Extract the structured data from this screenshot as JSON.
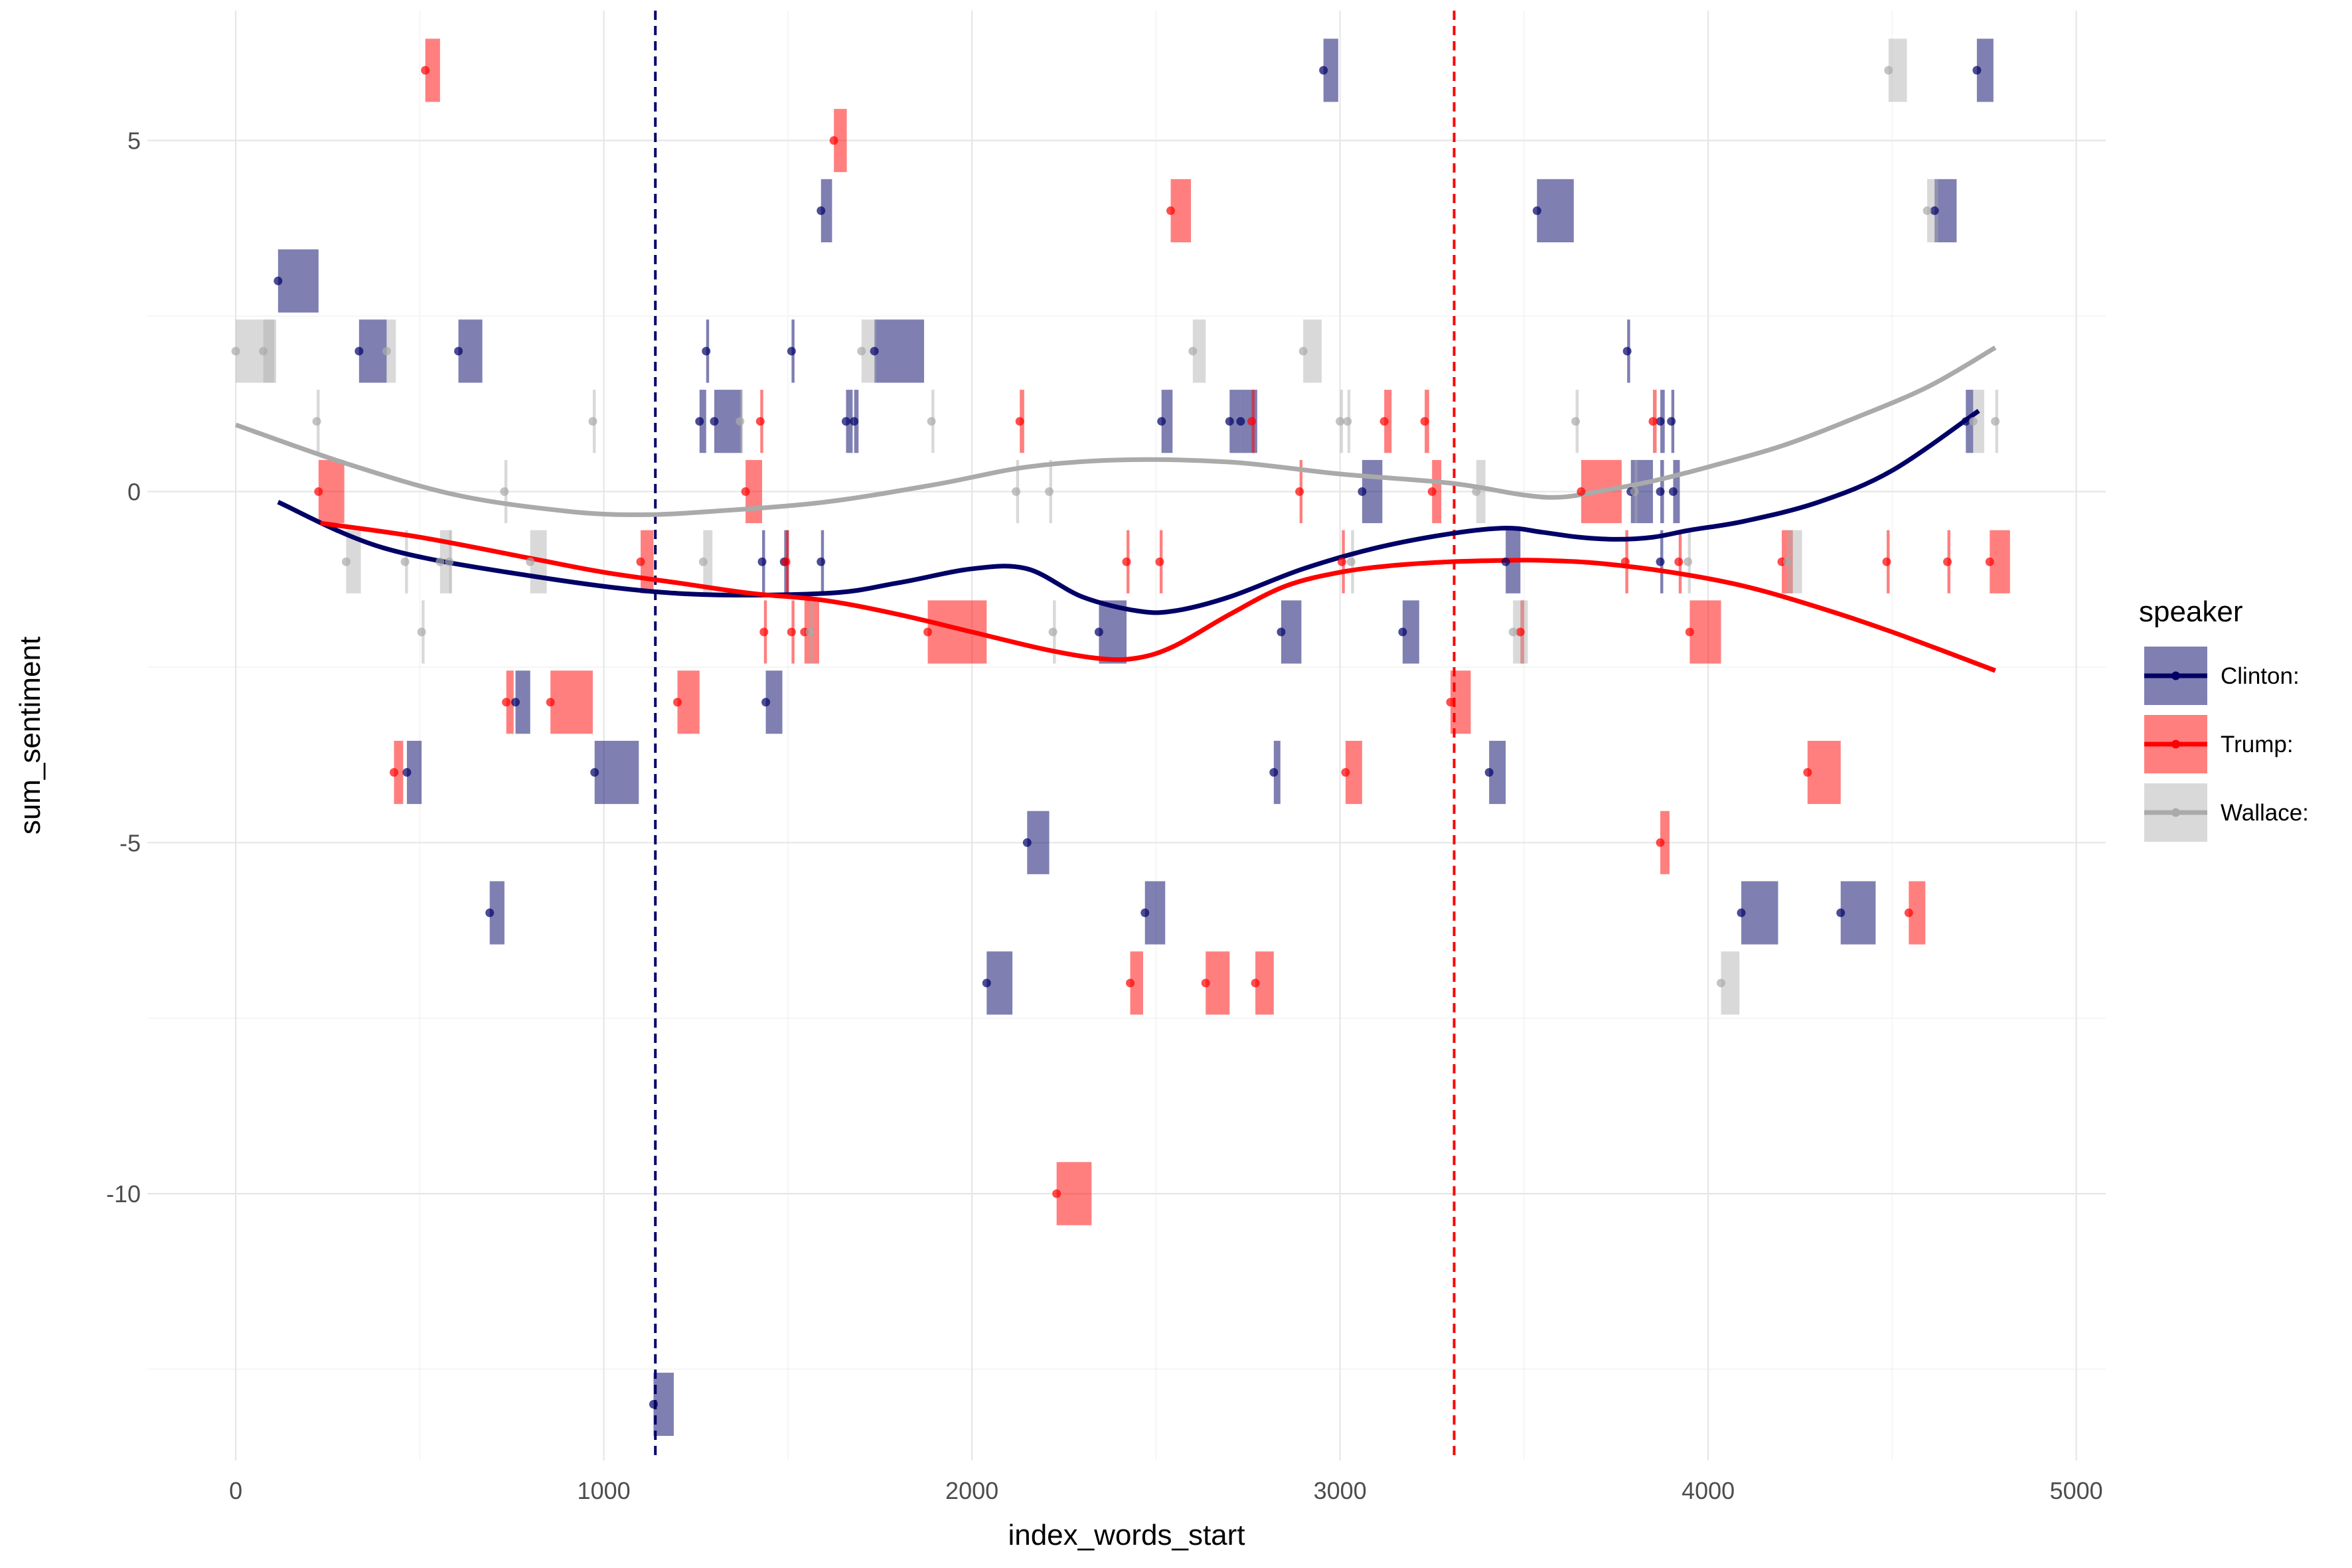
{
  "chart_data": {
    "type": "scatter",
    "xlabel": "index_words_start",
    "ylabel": "sum_sentiment",
    "xlim": [
      -240,
      5080
    ],
    "ylim": [
      -13.8,
      6.85
    ],
    "x_ticks": [
      0,
      1000,
      2000,
      3000,
      4000,
      5000
    ],
    "x_tick_labels": [
      "0",
      "1000",
      "2000",
      "3000",
      "4000",
      "5000"
    ],
    "y_ticks": [
      -10,
      -5,
      0,
      5
    ],
    "y_tick_labels": [
      "-10",
      "-5",
      "0",
      "5"
    ],
    "grid": true,
    "legend": {
      "title": "speaker",
      "position": "right",
      "entries": [
        {
          "label": "Clinton:",
          "color": "#000066"
        },
        {
          "label": "Trump:",
          "color": "#ff0000"
        },
        {
          "label": "Wallace:",
          "color": "#aaaaaa"
        }
      ]
    },
    "vlines": [
      {
        "x": 1140,
        "color": "#000066"
      },
      {
        "x": 3310,
        "color": "#ff0000"
      }
    ],
    "series": [
      {
        "name": "Clinton:",
        "color": "#000066",
        "points": [
          {
            "x": 115,
            "y": 3,
            "len": 110
          },
          {
            "x": 335,
            "y": 2,
            "len": 75
          },
          {
            "x": 605,
            "y": 2,
            "len": 65
          },
          {
            "x": 1590,
            "y": 4,
            "len": 30
          },
          {
            "x": 1735,
            "y": 2,
            "len": 135
          },
          {
            "x": 1278,
            "y": 2,
            "len": 8
          },
          {
            "x": 1510,
            "y": 2,
            "len": 8
          },
          {
            "x": 2955,
            "y": 6,
            "len": 40
          },
          {
            "x": 4730,
            "y": 6,
            "len": 45
          },
          {
            "x": 3535,
            "y": 4,
            "len": 100
          },
          {
            "x": 4615,
            "y": 4,
            "len": 60
          },
          {
            "x": 3780,
            "y": 2,
            "len": 8
          },
          {
            "x": 1260,
            "y": 1,
            "len": 18
          },
          {
            "x": 1300,
            "y": 1,
            "len": 75
          },
          {
            "x": 1658,
            "y": 1,
            "len": 18
          },
          {
            "x": 1680,
            "y": 1,
            "len": 12
          },
          {
            "x": 2515,
            "y": 1,
            "len": 30
          },
          {
            "x": 2700,
            "y": 1,
            "len": 30
          },
          {
            "x": 2730,
            "y": 1,
            "len": 45
          },
          {
            "x": 3870,
            "y": 1,
            "len": 12
          },
          {
            "x": 3900,
            "y": 1,
            "len": 8
          },
          {
            "x": 4700,
            "y": 1,
            "len": 20
          },
          {
            "x": 3060,
            "y": 0,
            "len": 55
          },
          {
            "x": 3790,
            "y": 0,
            "len": 60
          },
          {
            "x": 3870,
            "y": 0,
            "len": 10
          },
          {
            "x": 3905,
            "y": 0,
            "len": 18
          },
          {
            "x": 1430,
            "y": -1,
            "len": 8
          },
          {
            "x": 1490,
            "y": -1,
            "len": 12
          },
          {
            "x": 1590,
            "y": -1,
            "len": 8
          },
          {
            "x": 3450,
            "y": -1,
            "len": 40
          },
          {
            "x": 3870,
            "y": -1,
            "len": 8
          },
          {
            "x": 2345,
            "y": -2,
            "len": 75
          },
          {
            "x": 2840,
            "y": -2,
            "len": 55
          },
          {
            "x": 3170,
            "y": -2,
            "len": 45
          },
          {
            "x": 760,
            "y": -3,
            "len": 40
          },
          {
            "x": 1440,
            "y": -3,
            "len": 45
          },
          {
            "x": 465,
            "y": -4,
            "len": 40
          },
          {
            "x": 975,
            "y": -4,
            "len": 120
          },
          {
            "x": 2820,
            "y": -4,
            "len": 18
          },
          {
            "x": 3405,
            "y": -4,
            "len": 45
          },
          {
            "x": 2150,
            "y": -5,
            "len": 60
          },
          {
            "x": 690,
            "y": -6,
            "len": 40
          },
          {
            "x": 2470,
            "y": -6,
            "len": 55
          },
          {
            "x": 4090,
            "y": -6,
            "len": 100
          },
          {
            "x": 4360,
            "y": -6,
            "len": 95
          },
          {
            "x": 2040,
            "y": -7,
            "len": 70
          },
          {
            "x": 1135,
            "y": -13,
            "len": 55
          }
        ]
      },
      {
        "name": "Trump:",
        "color": "#ff0000",
        "points": [
          {
            "x": 515,
            "y": 6,
            "len": 40
          },
          {
            "x": 1625,
            "y": 5,
            "len": 35
          },
          {
            "x": 2540,
            "y": 4,
            "len": 55
          },
          {
            "x": 225,
            "y": 0,
            "len": 70
          },
          {
            "x": 1385,
            "y": 0,
            "len": 45
          },
          {
            "x": 2890,
            "y": 0,
            "len": 8
          },
          {
            "x": 3250,
            "y": 0,
            "len": 25
          },
          {
            "x": 3655,
            "y": 0,
            "len": 110
          },
          {
            "x": 1425,
            "y": 1,
            "len": 8
          },
          {
            "x": 2130,
            "y": 1,
            "len": 12
          },
          {
            "x": 2760,
            "y": 1,
            "len": 8
          },
          {
            "x": 3120,
            "y": 1,
            "len": 20
          },
          {
            "x": 3230,
            "y": 1,
            "len": 12
          },
          {
            "x": 3850,
            "y": 1,
            "len": 10
          },
          {
            "x": 1100,
            "y": -1,
            "len": 35
          },
          {
            "x": 1495,
            "y": -1,
            "len": 8
          },
          {
            "x": 2420,
            "y": -1,
            "len": 8
          },
          {
            "x": 2510,
            "y": -1,
            "len": 8
          },
          {
            "x": 3005,
            "y": -1,
            "len": 8
          },
          {
            "x": 3775,
            "y": -1,
            "len": 8
          },
          {
            "x": 3920,
            "y": -1,
            "len": 8
          },
          {
            "x": 4200,
            "y": -1,
            "len": 30
          },
          {
            "x": 4485,
            "y": -1,
            "len": 8
          },
          {
            "x": 4650,
            "y": -1,
            "len": 8
          },
          {
            "x": 4765,
            "y": -1,
            "len": 55
          },
          {
            "x": 1435,
            "y": -2,
            "len": 8
          },
          {
            "x": 1510,
            "y": -2,
            "len": 8
          },
          {
            "x": 1545,
            "y": -2,
            "len": 40
          },
          {
            "x": 1880,
            "y": -2,
            "len": 160
          },
          {
            "x": 3490,
            "y": -2,
            "len": 10
          },
          {
            "x": 3950,
            "y": -2,
            "len": 85
          },
          {
            "x": 735,
            "y": -3,
            "len": 20
          },
          {
            "x": 855,
            "y": -3,
            "len": 115
          },
          {
            "x": 1200,
            "y": -3,
            "len": 60
          },
          {
            "x": 3300,
            "y": -3,
            "len": 55
          },
          {
            "x": 430,
            "y": -4,
            "len": 25
          },
          {
            "x": 3015,
            "y": -4,
            "len": 45
          },
          {
            "x": 4270,
            "y": -4,
            "len": 90
          },
          {
            "x": 3870,
            "y": -5,
            "len": 25
          },
          {
            "x": 4545,
            "y": -6,
            "len": 45
          },
          {
            "x": 2430,
            "y": -7,
            "len": 35
          },
          {
            "x": 2635,
            "y": -7,
            "len": 65
          },
          {
            "x": 2770,
            "y": -7,
            "len": 50
          },
          {
            "x": 2230,
            "y": -10,
            "len": 95
          }
        ]
      },
      {
        "name": "Wallace:",
        "color": "#aaaaaa",
        "points": [
          {
            "x": 4490,
            "y": 6,
            "len": 50
          },
          {
            "x": 4595,
            "y": 4,
            "len": 30
          },
          {
            "x": 0,
            "y": 2,
            "len": 110
          },
          {
            "x": 75,
            "y": 2,
            "len": 30
          },
          {
            "x": 410,
            "y": 2,
            "len": 25
          },
          {
            "x": 1700,
            "y": 2,
            "len": 40
          },
          {
            "x": 2600,
            "y": 2,
            "len": 35
          },
          {
            "x": 2900,
            "y": 2,
            "len": 50
          },
          {
            "x": 220,
            "y": 1,
            "len": 8
          },
          {
            "x": 970,
            "y": 1,
            "len": 8
          },
          {
            "x": 1370,
            "y": 1,
            "len": 8
          },
          {
            "x": 1890,
            "y": 1,
            "len": 8
          },
          {
            "x": 3000,
            "y": 1,
            "len": 8
          },
          {
            "x": 3020,
            "y": 1,
            "len": 8
          },
          {
            "x": 3640,
            "y": 1,
            "len": 8
          },
          {
            "x": 4720,
            "y": 1,
            "len": 30
          },
          {
            "x": 4780,
            "y": 1,
            "len": 8
          },
          {
            "x": 730,
            "y": 0,
            "len": 8
          },
          {
            "x": 2120,
            "y": 0,
            "len": 8
          },
          {
            "x": 2210,
            "y": 0,
            "len": 8
          },
          {
            "x": 3370,
            "y": 0,
            "len": 25
          },
          {
            "x": 3800,
            "y": 0,
            "len": 8
          },
          {
            "x": 300,
            "y": -1,
            "len": 40
          },
          {
            "x": 460,
            "y": -1,
            "len": 8
          },
          {
            "x": 555,
            "y": -1,
            "len": 30
          },
          {
            "x": 580,
            "y": -1,
            "len": 8
          },
          {
            "x": 800,
            "y": -1,
            "len": 45
          },
          {
            "x": 1270,
            "y": -1,
            "len": 25
          },
          {
            "x": 3030,
            "y": -1,
            "len": 8
          },
          {
            "x": 3945,
            "y": -1,
            "len": 8
          },
          {
            "x": 4215,
            "y": -1,
            "len": 40
          },
          {
            "x": 505,
            "y": -2,
            "len": 8
          },
          {
            "x": 1560,
            "y": -2,
            "len": 10
          },
          {
            "x": 2220,
            "y": -2,
            "len": 8
          },
          {
            "x": 3470,
            "y": -2,
            "len": 40
          },
          {
            "x": 4035,
            "y": -7,
            "len": 50
          }
        ]
      }
    ],
    "smooth": [
      {
        "name": "Clinton:",
        "color": "#000066",
        "x": [
          115,
          400,
          800,
          1200,
          1600,
          1800,
          2000,
          2150,
          2300,
          2450,
          2550,
          2700,
          2900,
          3100,
          3300,
          3450,
          3550,
          3650,
          3750,
          3850,
          3950,
          4100,
          4300,
          4500,
          4735
        ],
        "y": [
          -0.15,
          -0.8,
          -1.2,
          -1.45,
          -1.45,
          -1.3,
          -1.1,
          -1.1,
          -1.5,
          -1.7,
          -1.7,
          -1.5,
          -1.1,
          -0.8,
          -0.6,
          -0.52,
          -0.58,
          -0.65,
          -0.68,
          -0.65,
          -0.55,
          -0.42,
          -0.15,
          0.3,
          1.15
        ]
      },
      {
        "name": "Trump:",
        "color": "#ff0000",
        "x": [
          230,
          500,
          800,
          1000,
          1200,
          1400,
          1600,
          1800,
          2000,
          2200,
          2350,
          2450,
          2550,
          2700,
          2850,
          3000,
          3150,
          3300,
          3450,
          3550,
          3700,
          3900,
          4100,
          4300,
          4500,
          4780
        ],
        "y": [
          -0.45,
          -0.65,
          -0.95,
          -1.15,
          -1.3,
          -1.45,
          -1.55,
          -1.75,
          -2,
          -2.25,
          -2.38,
          -2.37,
          -2.2,
          -1.75,
          -1.35,
          -1.15,
          -1.05,
          -1.0,
          -0.98,
          -0.98,
          -1.02,
          -1.15,
          -1.35,
          -1.65,
          -2.0,
          -2.55
        ]
      },
      {
        "name": "Wallace:",
        "color": "#aaaaaa",
        "x": [
          0,
          300,
          600,
          900,
          1100,
          1300,
          1600,
          1900,
          2150,
          2400,
          2700,
          3000,
          3300,
          3500,
          3600,
          3700,
          3850,
          4000,
          4200,
          4400,
          4600,
          4780
        ],
        "y": [
          0.95,
          0.4,
          -0.05,
          -0.28,
          -0.33,
          -0.28,
          -0.15,
          0.1,
          0.35,
          0.45,
          0.42,
          0.25,
          0.12,
          -0.05,
          -0.08,
          0.0,
          0.15,
          0.35,
          0.65,
          1.05,
          1.5,
          2.05
        ]
      }
    ]
  }
}
